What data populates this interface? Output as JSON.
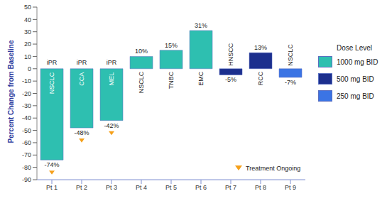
{
  "chart_data": {
    "type": "bar",
    "y_label": "Percent Change from Baseline",
    "categories": [
      "Pt 1",
      "Pt 2",
      "Pt 3",
      "Pt 4",
      "Pt 5",
      "Pt 6",
      "Pt 7",
      "Pt 8",
      "Pt 9"
    ],
    "values": [
      -74,
      -48,
      -42,
      10,
      15,
      31,
      -5,
      13,
      -7
    ],
    "value_labels": [
      "-74%",
      "-48%",
      "-42%",
      "10%",
      "15%",
      "31%",
      "-5%",
      "13%",
      "-7%"
    ],
    "tumor_types": [
      "NSCLC",
      "CCA",
      "MEL",
      "NSCLC",
      "TNBC",
      "EMC",
      "HNSCC",
      "RCC",
      "NSCLC"
    ],
    "dose": [
      "1000 mg BID",
      "1000 mg BID",
      "1000 mg BID",
      "1000 mg BID",
      "1000 mg BID",
      "1000 mg BID",
      "500 mg BID",
      "500 mg BID",
      "250 mg BID"
    ],
    "responses": [
      {
        "category": "Pt 1",
        "text": "iPR"
      },
      {
        "category": "Pt 2",
        "text": "iPR"
      },
      {
        "category": "Pt 3",
        "text": "iPR"
      }
    ],
    "treatment_ongoing": [
      "Pt 1",
      "Pt 2",
      "Pt 3"
    ],
    "treatment_ongoing_label": "Treatment Ongoing",
    "legend_title": "Dose Level",
    "dose_levels": [
      {
        "name": "1000 mg BID",
        "color": "#2ebfb0"
      },
      {
        "name": "500 mg BID",
        "color": "#1c2f8e"
      },
      {
        "name": "250 mg BID",
        "color": "#3b74e4"
      }
    ],
    "legend": "right",
    "data_labels": true,
    "ylim": [
      -90,
      50
    ],
    "yticks": [
      -90,
      -80,
      -70,
      -60,
      -50,
      -40,
      -30,
      -20,
      -10,
      0,
      10,
      20,
      30,
      40,
      50
    ],
    "grid": false
  }
}
